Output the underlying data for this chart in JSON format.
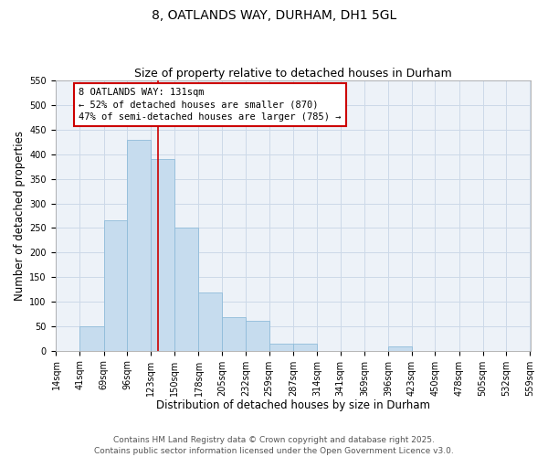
{
  "title": "8, OATLANDS WAY, DURHAM, DH1 5GL",
  "subtitle": "Size of property relative to detached houses in Durham",
  "xlabel": "Distribution of detached houses by size in Durham",
  "ylabel": "Number of detached properties",
  "bar_edges": [
    14,
    41,
    69,
    96,
    123,
    150,
    178,
    205,
    232,
    259,
    287,
    314,
    341,
    369,
    396,
    423,
    450,
    478,
    505,
    532,
    559
  ],
  "bar_heights": [
    0,
    50,
    265,
    430,
    390,
    250,
    118,
    68,
    60,
    14,
    14,
    0,
    0,
    0,
    8,
    0,
    0,
    0,
    0,
    0
  ],
  "bar_color": "#c6dcee",
  "bar_edgecolor": "#8fbcda",
  "vline_x": 131,
  "vline_color": "#cc0000",
  "annotation_text": "8 OATLANDS WAY: 131sqm\n← 52% of detached houses are smaller (870)\n47% of semi-detached houses are larger (785) →",
  "annotation_box_edgecolor": "#cc0000",
  "annotation_box_facecolor": "#ffffff",
  "ylim": [
    0,
    550
  ],
  "yticks": [
    0,
    50,
    100,
    150,
    200,
    250,
    300,
    350,
    400,
    450,
    500,
    550
  ],
  "grid_color": "#ccd9e8",
  "background_color": "#edf2f8",
  "footer_line1": "Contains HM Land Registry data © Crown copyright and database right 2025.",
  "footer_line2": "Contains public sector information licensed under the Open Government Licence v3.0.",
  "title_fontsize": 10,
  "subtitle_fontsize": 9,
  "xlabel_fontsize": 8.5,
  "ylabel_fontsize": 8.5,
  "tick_fontsize": 7,
  "footer_fontsize": 6.5,
  "annot_fontsize": 7.5
}
